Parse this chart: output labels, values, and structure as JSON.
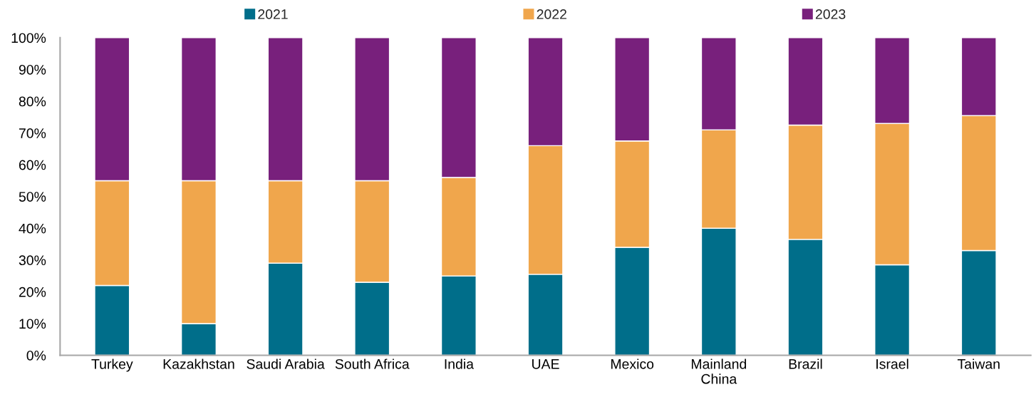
{
  "chart_data": {
    "type": "bar",
    "stacked": true,
    "categories": [
      "Turkey",
      "Kazakhstan",
      "Saudi Arabia",
      "South Africa",
      "India",
      "UAE",
      "Mexico",
      "Mainland\nChina",
      "Brazil",
      "Israel",
      "Taiwan"
    ],
    "series": [
      {
        "name": "2021",
        "color": "#006e8a",
        "values": [
          22,
          10,
          29,
          23,
          25,
          25.5,
          34,
          40,
          36.5,
          28.5,
          33
        ]
      },
      {
        "name": "2022",
        "color": "#f0a64c",
        "values": [
          33,
          45,
          26,
          32,
          31,
          40.5,
          33.5,
          31,
          36,
          44.5,
          42.5
        ]
      },
      {
        "name": "2023",
        "color": "#78207c",
        "values": [
          45,
          45,
          45,
          45,
          44,
          34,
          32.5,
          29,
          27.5,
          27,
          24.5
        ]
      }
    ],
    "ylim": [
      0,
      100
    ],
    "yticks": [
      {
        "value": 0,
        "label": "0%"
      },
      {
        "value": 10,
        "label": "10%"
      },
      {
        "value": 20,
        "label": "20%"
      },
      {
        "value": 30,
        "label": "30%"
      },
      {
        "value": 40,
        "label": "40%"
      },
      {
        "value": 50,
        "label": "50%"
      },
      {
        "value": 60,
        "label": "60%"
      },
      {
        "value": 70,
        "label": "70%"
      },
      {
        "value": 80,
        "label": "80%"
      },
      {
        "value": 90,
        "label": "90%"
      },
      {
        "value": 100,
        "label": "100%"
      }
    ],
    "grid": false,
    "legend": "top"
  }
}
